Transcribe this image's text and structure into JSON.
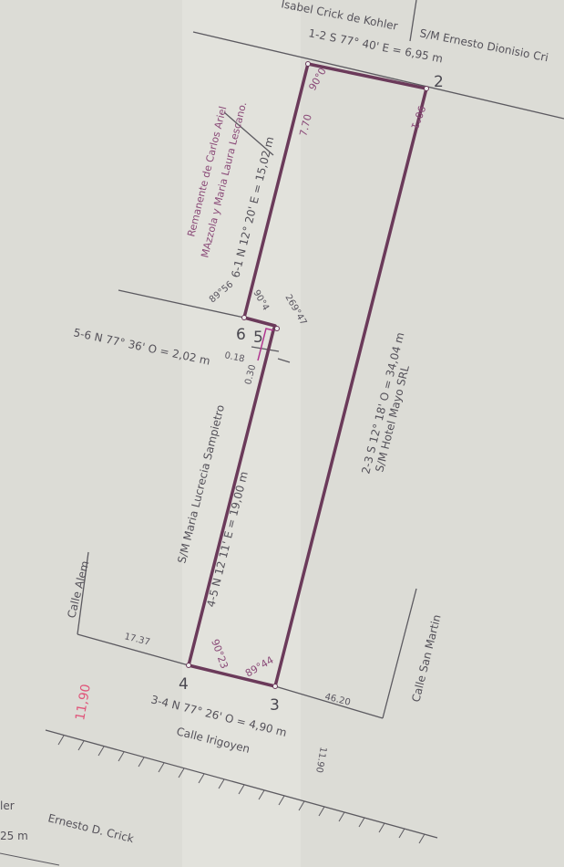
{
  "points": {
    "p2": "2",
    "p3": "3",
    "p4": "4",
    "p5": "5",
    "p6": "6"
  },
  "neighbors": {
    "top_left": "Isabel Crick de Kohler",
    "top_right": "S/M Ernesto Dionisio Cri",
    "left_remnant_1": "Remanente de Carlos Ariel",
    "left_remnant_2": "MAzzola y Maria Laura Lescano.",
    "lower_left": "S/M Maria Lucrecia Sampietro",
    "right": "S/M Hotel Mayo SRL",
    "bottom_left_1": "ler",
    "bottom_left_2": "25 m",
    "bottom": "Ernesto D. Crick"
  },
  "sides": {
    "s12": "1-2 S 77° 40' E = 6,95 m",
    "s23": "2-3 S 12° 18' O = 34,04 m",
    "s34": "3-4 N 77° 26' O = 4,90 m",
    "s45": "4-5 N 12 11' E = 19,00 m",
    "s56": "5-6 N 77° 36' O = 2,02 m",
    "s61": "6-1 N 12° 20' E = 15,02 m"
  },
  "angles": {
    "a1": "90°0",
    "a2": "90°1",
    "a3": "89°44",
    "a4": "90°23",
    "a6": "89°56",
    "a5a": "90°4",
    "a5b": "269°47"
  },
  "dims": {
    "d770": "7.70",
    "d018": "0.18",
    "d030": "0.30",
    "d1737": "17.37",
    "d4620": "46.20",
    "d1190": "11.90",
    "d1190red": "11,90"
  },
  "streets": {
    "alem": "Calle Alem",
    "san_martin": "Calle San Martin",
    "irigoyen": "Calle Irigoyen"
  },
  "colors": {
    "parcel": "#6b3a5a",
    "accent": "#b0358f",
    "lines": "#55525a",
    "red_note": "#e0557a"
  }
}
